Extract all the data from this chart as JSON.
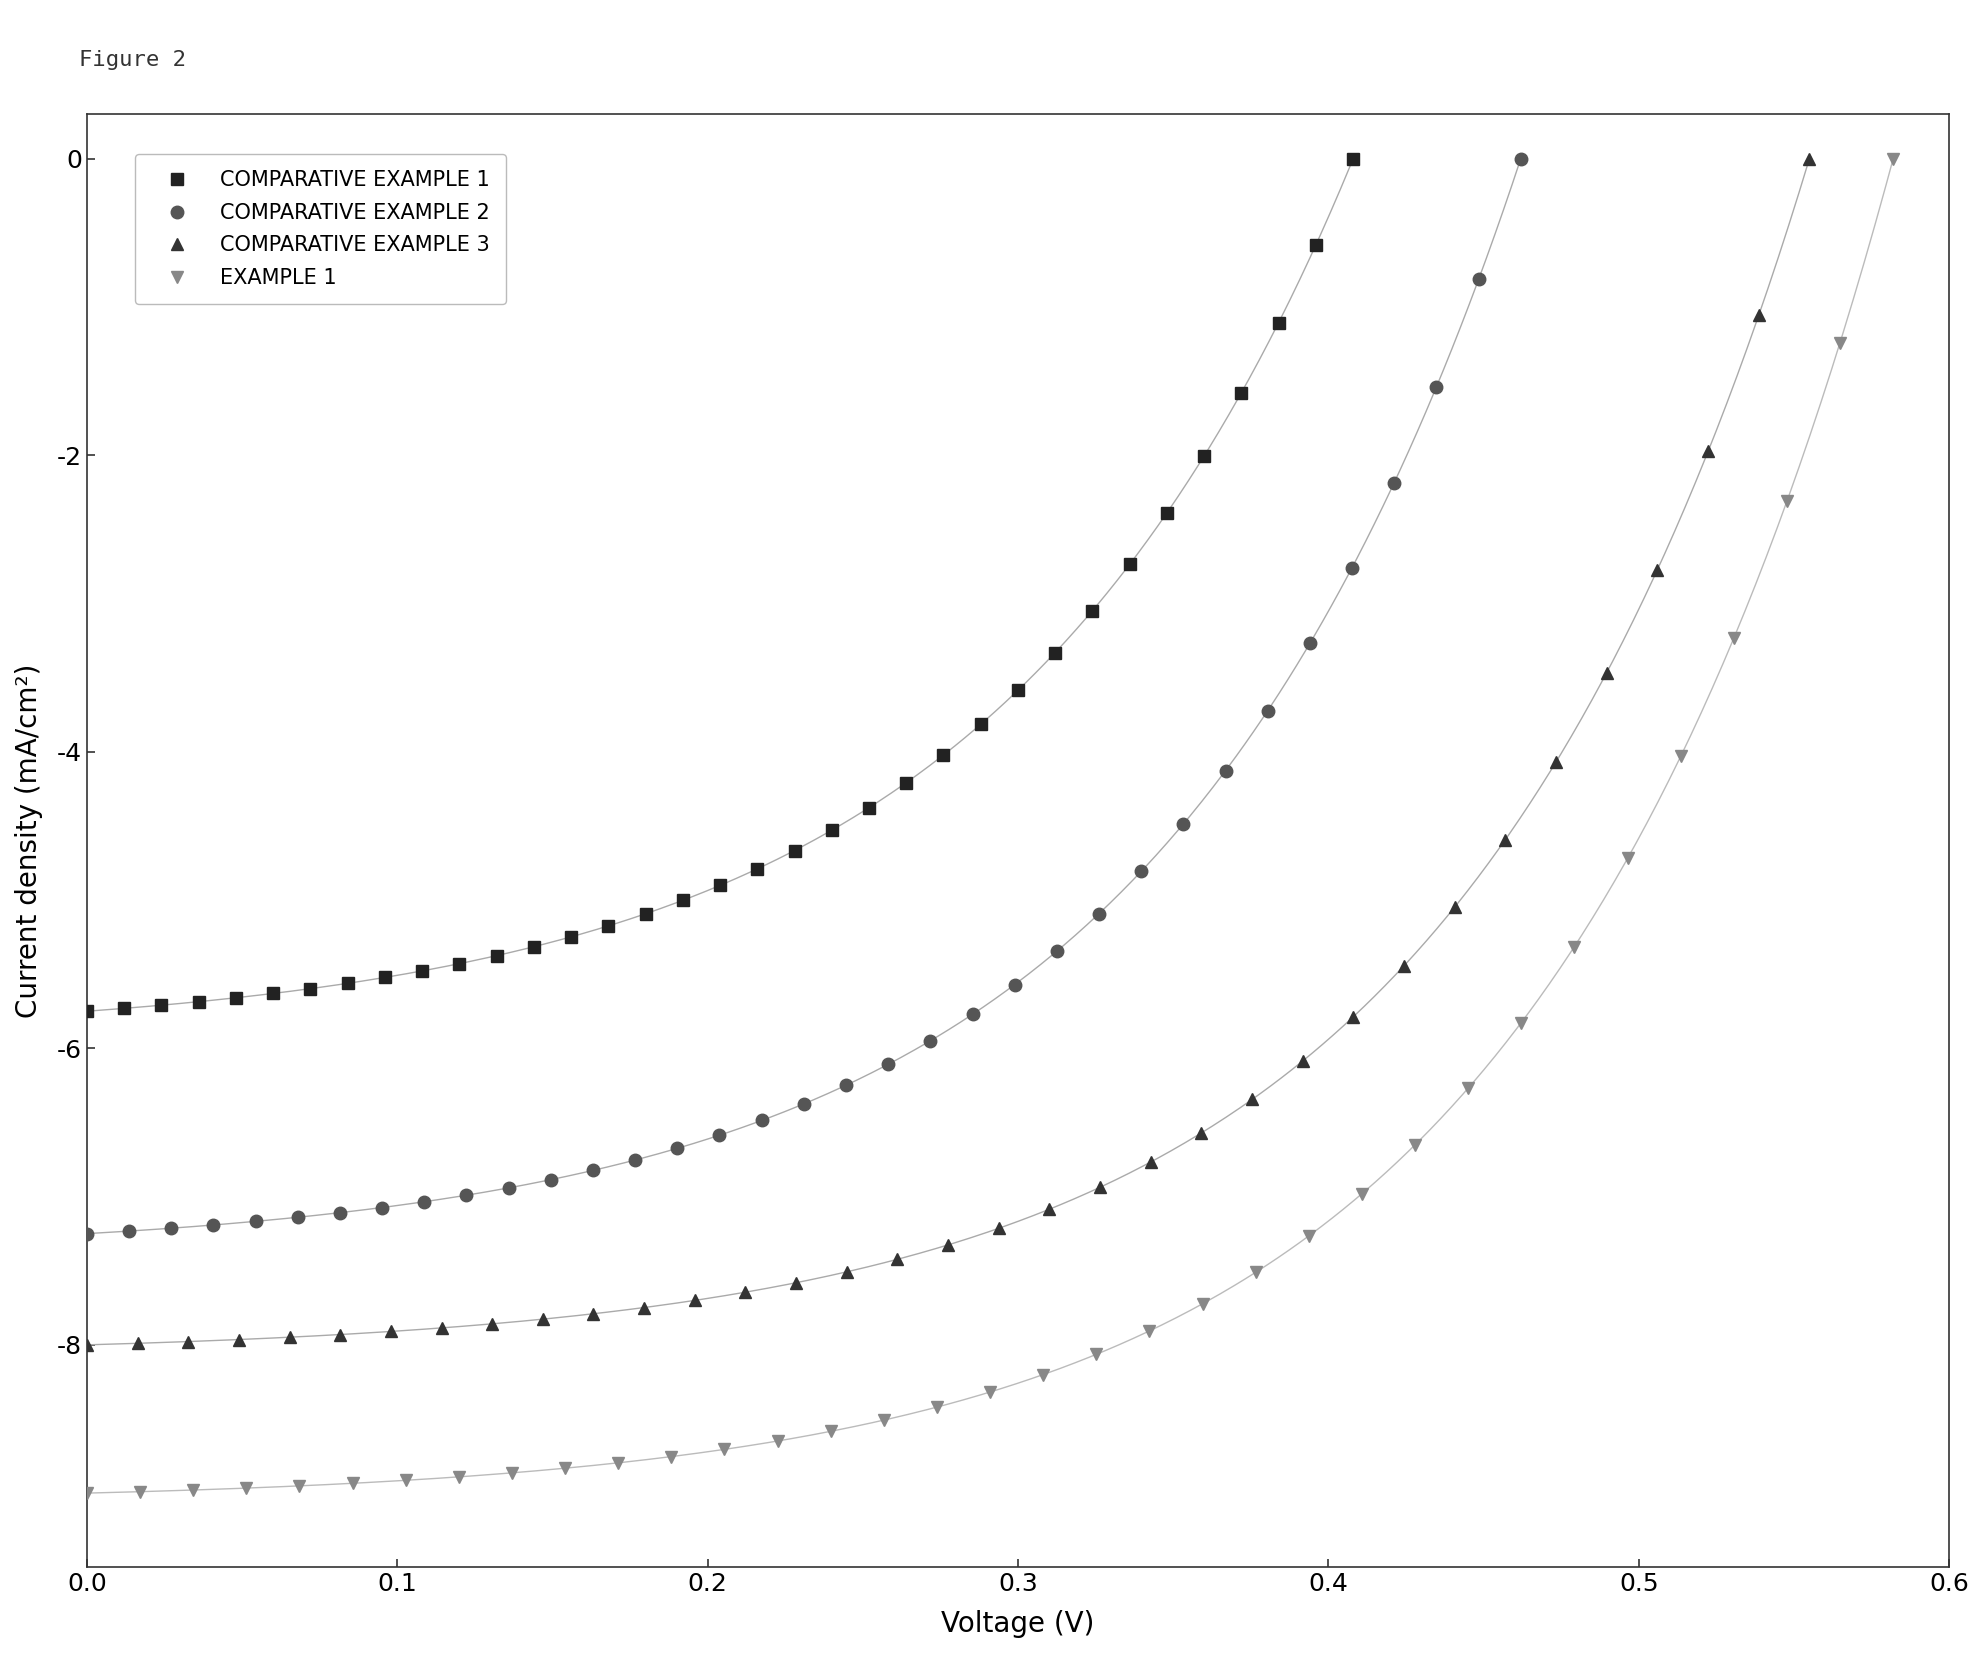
{
  "title": "Figure 2",
  "xlabel": "Voltage (V)",
  "ylabel": "Current density (mA/cm²)",
  "xlim": [
    0.0,
    0.6
  ],
  "ylim": [
    -9.5,
    0.3
  ],
  "xticks": [
    0.0,
    0.1,
    0.2,
    0.3,
    0.4,
    0.5,
    0.6
  ],
  "yticks": [
    0,
    -2,
    -4,
    -6,
    -8
  ],
  "series": [
    {
      "label": "COMPARATIVE EXAMPLE 1",
      "marker": "s",
      "line_color": "#aaaaaa",
      "marker_color": "#222222",
      "Jsc": -5.75,
      "Voc": 0.408,
      "n": 4.5
    },
    {
      "label": "COMPARATIVE EXAMPLE 2",
      "marker": "o",
      "line_color": "#aaaaaa",
      "marker_color": "#555555",
      "Jsc": -7.25,
      "Voc": 0.462,
      "n": 4.5
    },
    {
      "label": "COMPARATIVE EXAMPLE 3",
      "marker": "^",
      "line_color": "#aaaaaa",
      "marker_color": "#333333",
      "Jsc": -8.0,
      "Voc": 0.555,
      "n": 4.5
    },
    {
      "label": "EXAMPLE 1",
      "marker": "v",
      "line_color": "#bbbbbb",
      "marker_color": "#888888",
      "Jsc": -9.0,
      "Voc": 0.582,
      "n": 4.5
    }
  ],
  "figure_label": "Figure 2",
  "background_color": "#ffffff",
  "marker_size": 9,
  "line_width": 1.0,
  "n_markers": 35
}
